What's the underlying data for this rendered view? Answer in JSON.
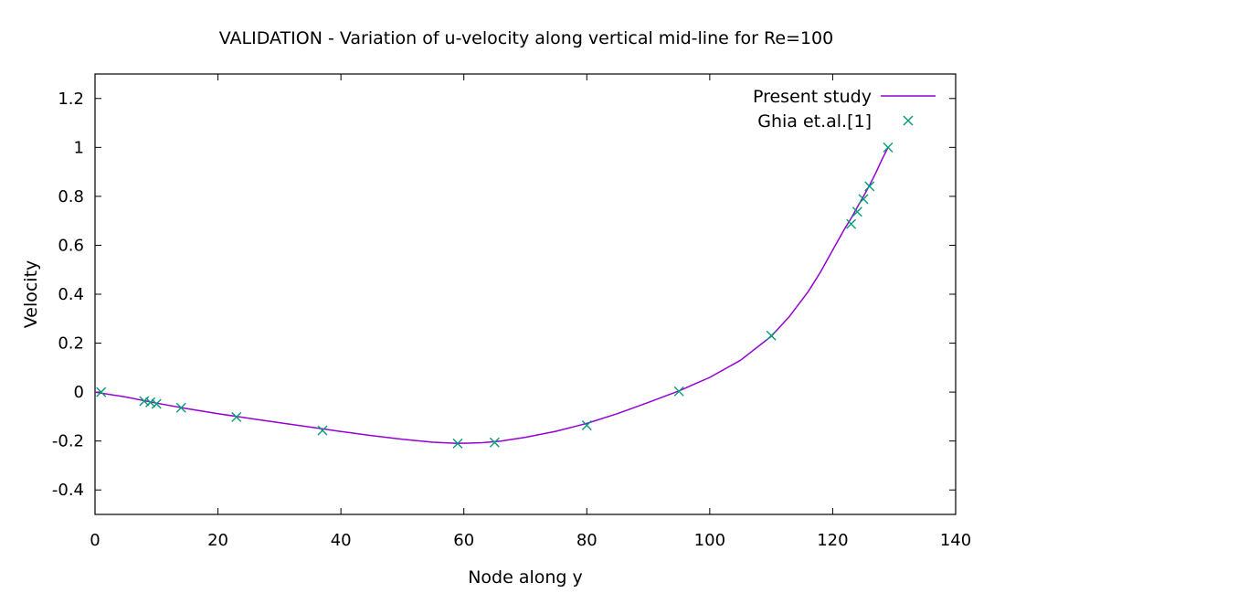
{
  "chart_data": {
    "type": "line",
    "title": "VALIDATION - Variation of u-velocity along vertical mid-line for Re=100",
    "xlabel": "Node along y",
    "ylabel": "Velocity",
    "xlim": [
      0,
      140
    ],
    "ylim": [
      -0.5,
      1.3
    ],
    "xticks": [
      0,
      20,
      40,
      60,
      80,
      100,
      120,
      140
    ],
    "yticks": [
      -0.4,
      -0.2,
      0,
      0.2,
      0.4,
      0.6,
      0.8,
      1,
      1.2
    ],
    "xtick_labels": [
      "0",
      "20",
      "40",
      "60",
      "80",
      "100",
      "120",
      "140"
    ],
    "ytick_labels": [
      "-0.4",
      "-0.2",
      "0",
      "0.2",
      "0.4",
      "0.6",
      "0.8",
      "1",
      "1.2"
    ],
    "grid": false,
    "legend_position": "top-right",
    "series": [
      {
        "name": "Present study",
        "style": "line",
        "color": "#9400d3",
        "x": [
          0,
          5,
          10,
          15,
          20,
          25,
          30,
          35,
          40,
          45,
          50,
          55,
          59,
          63,
          66,
          70,
          75,
          80,
          85,
          90,
          95,
          100,
          105,
          110,
          113,
          116,
          118,
          120,
          122,
          123,
          124,
          125,
          126,
          127,
          128,
          129
        ],
        "y": [
          0,
          -0.02,
          -0.045,
          -0.068,
          -0.088,
          -0.107,
          -0.125,
          -0.143,
          -0.161,
          -0.178,
          -0.193,
          -0.205,
          -0.21,
          -0.207,
          -0.2,
          -0.185,
          -0.16,
          -0.128,
          -0.088,
          -0.042,
          0.005,
          0.06,
          0.13,
          0.228,
          0.31,
          0.41,
          0.49,
          0.58,
          0.67,
          0.71,
          0.755,
          0.8,
          0.845,
          0.895,
          0.95,
          1.0
        ]
      },
      {
        "name": "Ghia et.al.[1]",
        "style": "points",
        "marker": "x",
        "color": "#009e73",
        "x": [
          1,
          8,
          9,
          10,
          14,
          23,
          37,
          59,
          65,
          80,
          95,
          110,
          123,
          124,
          125,
          126,
          129
        ],
        "y": [
          0,
          -0.037,
          -0.042,
          -0.048,
          -0.064,
          -0.102,
          -0.157,
          -0.21,
          -0.206,
          -0.136,
          0.003,
          0.231,
          0.687,
          0.737,
          0.789,
          0.841,
          1.0
        ]
      }
    ]
  }
}
